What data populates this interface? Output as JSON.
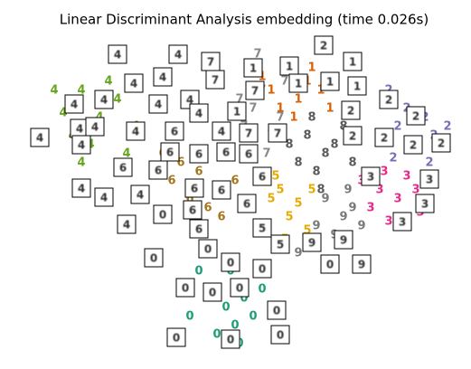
{
  "chart_data": {
    "type": "scatter",
    "title": "Linear Discriminant Analysis embedding (time 0.026s)",
    "axis": false,
    "xlim": [
      0,
      521
    ],
    "ylim": [
      0,
      408
    ],
    "series": [
      {
        "name": "0",
        "color": "#1b9e77",
        "x": [
          250,
          230,
          270,
          260,
          240,
          210,
          280,
          220,
          255,
          290,
          200,
          265
        ],
        "y": [
          68,
          88,
          78,
          48,
          38,
          58,
          58,
          108,
          108,
          88,
          28,
          28
        ]
      },
      {
        "name": "1",
        "color": "#d95f02",
        "x": [
          320,
          340,
          355,
          330,
          310,
          300,
          345,
          365,
          290,
          325
        ],
        "y": [
          338,
          318,
          308,
          298,
          288,
          308,
          333,
          288,
          323,
          278
        ]
      },
      {
        "name": "2",
        "color": "#7570b3",
        "x": [
          430,
          450,
          470,
          440,
          480,
          460,
          420,
          495,
          435,
          475
        ],
        "y": [
          308,
          288,
          278,
          268,
          258,
          243,
          258,
          268,
          233,
          228
        ]
      },
      {
        "name": "3",
        "color": "#e7298a",
        "x": [
          420,
          440,
          410,
          460,
          430,
          450,
          400,
          465,
          425,
          445
        ],
        "y": [
          198,
          188,
          178,
          198,
          163,
          213,
          208,
          173,
          218,
          158
        ]
      },
      {
        "name": "4",
        "color": "#66a61e",
        "x": [
          70,
          90,
          110,
          130,
          150,
          100,
          80,
          170,
          120,
          60,
          140,
          90
        ],
        "y": [
          283,
          308,
          278,
          298,
          268,
          248,
          258,
          288,
          318,
          308,
          238,
          228
        ]
      },
      {
        "name": "5",
        "color": "#e6ab02",
        "x": [
          300,
          320,
          310,
          330,
          290,
          340,
          315,
          305,
          280,
          345
        ],
        "y": [
          188,
          168,
          198,
          183,
          158,
          153,
          143,
          213,
          178,
          198
        ]
      },
      {
        "name": "6",
        "color": "#a6761d",
        "x": [
          220,
          240,
          200,
          230,
          210,
          250,
          190,
          260,
          215,
          180,
          245
        ],
        "y": [
          218,
          198,
          228,
          178,
          188,
          233,
          208,
          208,
          158,
          238,
          168
        ]
      },
      {
        "name": "7",
        "color": "#888888",
        "x": [
          290,
          310,
          280,
          300,
          270,
          315,
          295,
          265,
          285
        ],
        "y": [
          308,
          278,
          288,
          258,
          268,
          318,
          238,
          298,
          348
        ]
      },
      {
        "name": "8",
        "color": "#5a5a5a",
        "x": [
          340,
          360,
          350,
          370,
          330,
          380,
          355,
          320,
          390,
          345
        ],
        "y": [
          258,
          238,
          218,
          248,
          228,
          268,
          198,
          248,
          228,
          278
        ]
      },
      {
        "name": "9",
        "color": "#7a7a7a",
        "x": [
          360,
          380,
          350,
          370,
          390,
          340,
          385,
          400,
          330
        ],
        "y": [
          188,
          168,
          158,
          148,
          178,
          138,
          198,
          158,
          128
        ]
      }
    ],
    "thumbnails": {
      "x": [
        130,
        233,
        280,
        320,
        358,
        390,
        197,
        148,
        180,
        238,
        282,
        330,
        365,
        395,
        82,
        115,
        175,
        210,
        220,
        262,
        388,
        430,
        460,
        88,
        105,
        150,
        193,
        245,
        275,
        307,
        390,
        425,
        457,
        488,
        44,
        90,
        188,
        220,
        250,
        275,
        136,
        175,
        290,
        410,
        475,
        90,
        115,
        155,
        215,
        245,
        273,
        470,
        180,
        213,
        140,
        220,
        290,
        445,
        230,
        310,
        345,
        380,
        170,
        255,
        290,
        365,
        400,
        205,
        235,
        265,
        306,
        195,
        255,
        310
      ],
      "y": [
        348,
        340,
        333,
        335,
        358,
        340,
        348,
        316,
        323,
        320,
        308,
        316,
        318,
        313,
        293,
        298,
        293,
        298,
        283,
        285,
        286,
        298,
        280,
        266,
        268,
        263,
        263,
        263,
        261,
        261,
        258,
        256,
        248,
        250,
        256,
        248,
        240,
        238,
        240,
        238,
        223,
        220,
        213,
        213,
        210,
        200,
        190,
        193,
        200,
        198,
        183,
        183,
        171,
        176,
        160,
        155,
        156,
        163,
        133,
        138,
        140,
        143,
        123,
        118,
        111,
        116,
        116,
        90,
        85,
        90,
        65,
        35,
        33,
        38
      ],
      "digits": [
        "4",
        "7",
        "1",
        "1",
        "2",
        "1",
        "4",
        "4",
        "4",
        "7",
        "7",
        "1",
        "1",
        "1",
        "4",
        "4",
        "4",
        "4",
        "4",
        "1",
        "2",
        "2",
        "2",
        "4",
        "4",
        "4",
        "6",
        "4",
        "7",
        "7",
        "2",
        "2",
        "2",
        "2",
        "4",
        "4",
        "6",
        "6",
        "6",
        "6",
        "6",
        "6",
        "6",
        "3",
        "3",
        "4",
        "4",
        "4",
        "6",
        "6",
        "6",
        "3",
        "0",
        "6",
        "4",
        "6",
        "5",
        "3",
        "0",
        "5",
        "9",
        "9",
        "0",
        "0",
        "0",
        "0",
        "9",
        "0",
        "0",
        "0",
        "0",
        "0",
        "0",
        "0"
      ]
    }
  }
}
